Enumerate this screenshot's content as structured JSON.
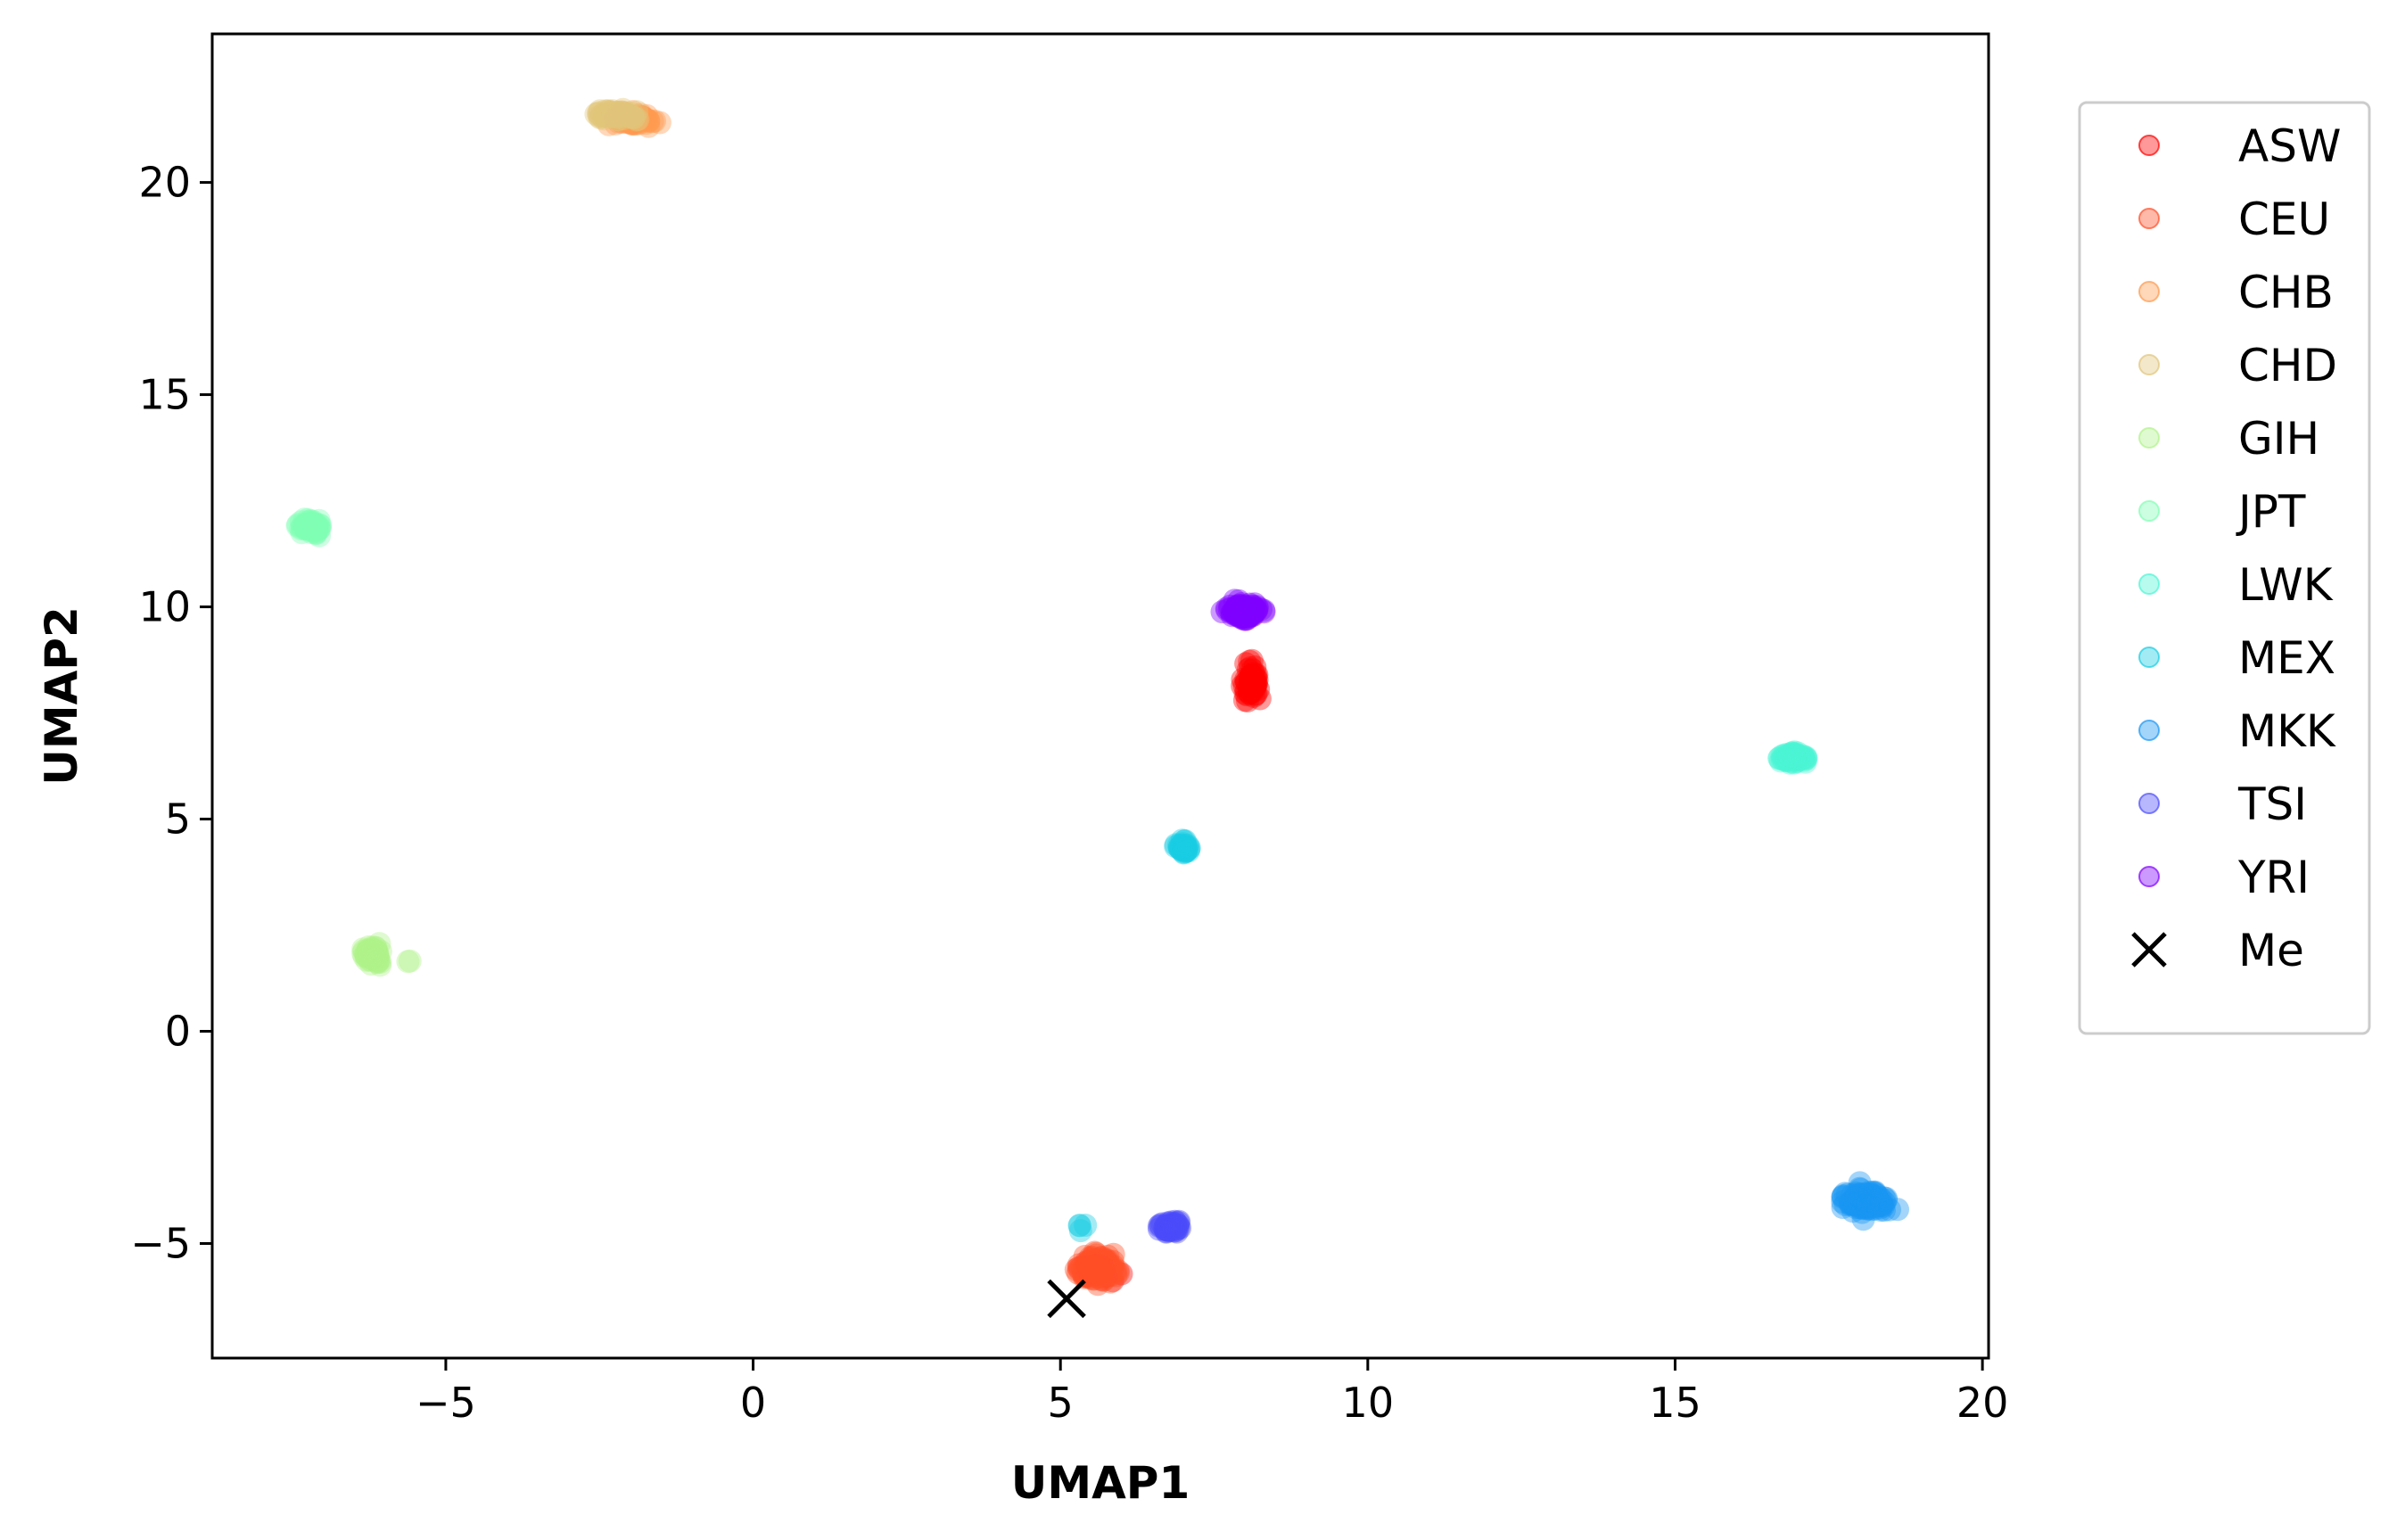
{
  "chart_data": {
    "type": "scatter",
    "xlabel": "UMAP1",
    "ylabel": "UMAP2",
    "xlim": [
      -8.8,
      20.1
    ],
    "ylim": [
      -7.7,
      23.5
    ],
    "xticks": [
      -5,
      0,
      5,
      10,
      15,
      20
    ],
    "xtick_labels": [
      "−5",
      "0",
      "5",
      "10",
      "15",
      "20"
    ],
    "yticks": [
      -5,
      0,
      5,
      10,
      15,
      20
    ],
    "ytick_labels": [
      "−5",
      "0",
      "5",
      "10",
      "15",
      "20"
    ],
    "grid": false,
    "legend_placement": "outside-right-top",
    "series": [
      {
        "name": "ASW",
        "color": "#ff0000",
        "clusters": [
          {
            "x": 8.1,
            "y": 8.2,
            "sx": 0.15,
            "sy": 0.45,
            "n": 60
          },
          {
            "x": 5.6,
            "y": -5.6,
            "sx": 0.3,
            "sy": 0.25,
            "n": 20
          }
        ]
      },
      {
        "name": "CEU",
        "color": "#ff4f28",
        "clusters": [
          {
            "x": 5.6,
            "y": -5.6,
            "sx": 0.35,
            "sy": 0.3,
            "n": 150
          },
          {
            "x": -2.0,
            "y": 21.5,
            "sx": 0.3,
            "sy": 0.12,
            "n": 20
          }
        ]
      },
      {
        "name": "CHB",
        "color": "#fe9a4f",
        "clusters": [
          {
            "x": -2.0,
            "y": 21.5,
            "sx": 0.4,
            "sy": 0.15,
            "n": 60
          }
        ]
      },
      {
        "name": "CHD",
        "color": "#e0c57a",
        "clusters": [
          {
            "x": -2.2,
            "y": 21.6,
            "sx": 0.35,
            "sy": 0.12,
            "n": 60
          }
        ]
      },
      {
        "name": "GIH",
        "color": "#b0f28a",
        "clusters": [
          {
            "x": -6.2,
            "y": 1.8,
            "sx": 0.18,
            "sy": 0.22,
            "n": 70
          },
          {
            "x": -5.6,
            "y": 1.7,
            "sx": 0.05,
            "sy": 0.05,
            "n": 2
          }
        ]
      },
      {
        "name": "JPT",
        "color": "#80ffb4",
        "clusters": [
          {
            "x": -7.2,
            "y": 11.9,
            "sx": 0.2,
            "sy": 0.15,
            "n": 80
          }
        ]
      },
      {
        "name": "LWK",
        "color": "#4bf5d4",
        "clusters": [
          {
            "x": 16.95,
            "y": 6.45,
            "sx": 0.2,
            "sy": 0.12,
            "n": 80
          }
        ]
      },
      {
        "name": "MEX",
        "color": "#18cde3",
        "clusters": [
          {
            "x": 7.0,
            "y": 4.3,
            "sx": 0.1,
            "sy": 0.15,
            "n": 50
          },
          {
            "x": 5.4,
            "y": -4.6,
            "sx": 0.15,
            "sy": 0.1,
            "n": 4
          }
        ]
      },
      {
        "name": "MKK",
        "color": "#1996f3",
        "clusters": [
          {
            "x": 18.1,
            "y": -4.0,
            "sx": 0.35,
            "sy": 0.3,
            "n": 140
          }
        ]
      },
      {
        "name": "TSI",
        "color": "#4b4bfb",
        "clusters": [
          {
            "x": 6.8,
            "y": -4.6,
            "sx": 0.2,
            "sy": 0.15,
            "n": 60
          }
        ]
      },
      {
        "name": "YRI",
        "color": "#8000ff",
        "clusters": [
          {
            "x": 8.0,
            "y": 9.9,
            "sx": 0.3,
            "sy": 0.2,
            "n": 120
          }
        ]
      }
    ],
    "marker": {
      "name": "Me",
      "x": 5.1,
      "y": -6.3,
      "color": "#000000"
    }
  }
}
